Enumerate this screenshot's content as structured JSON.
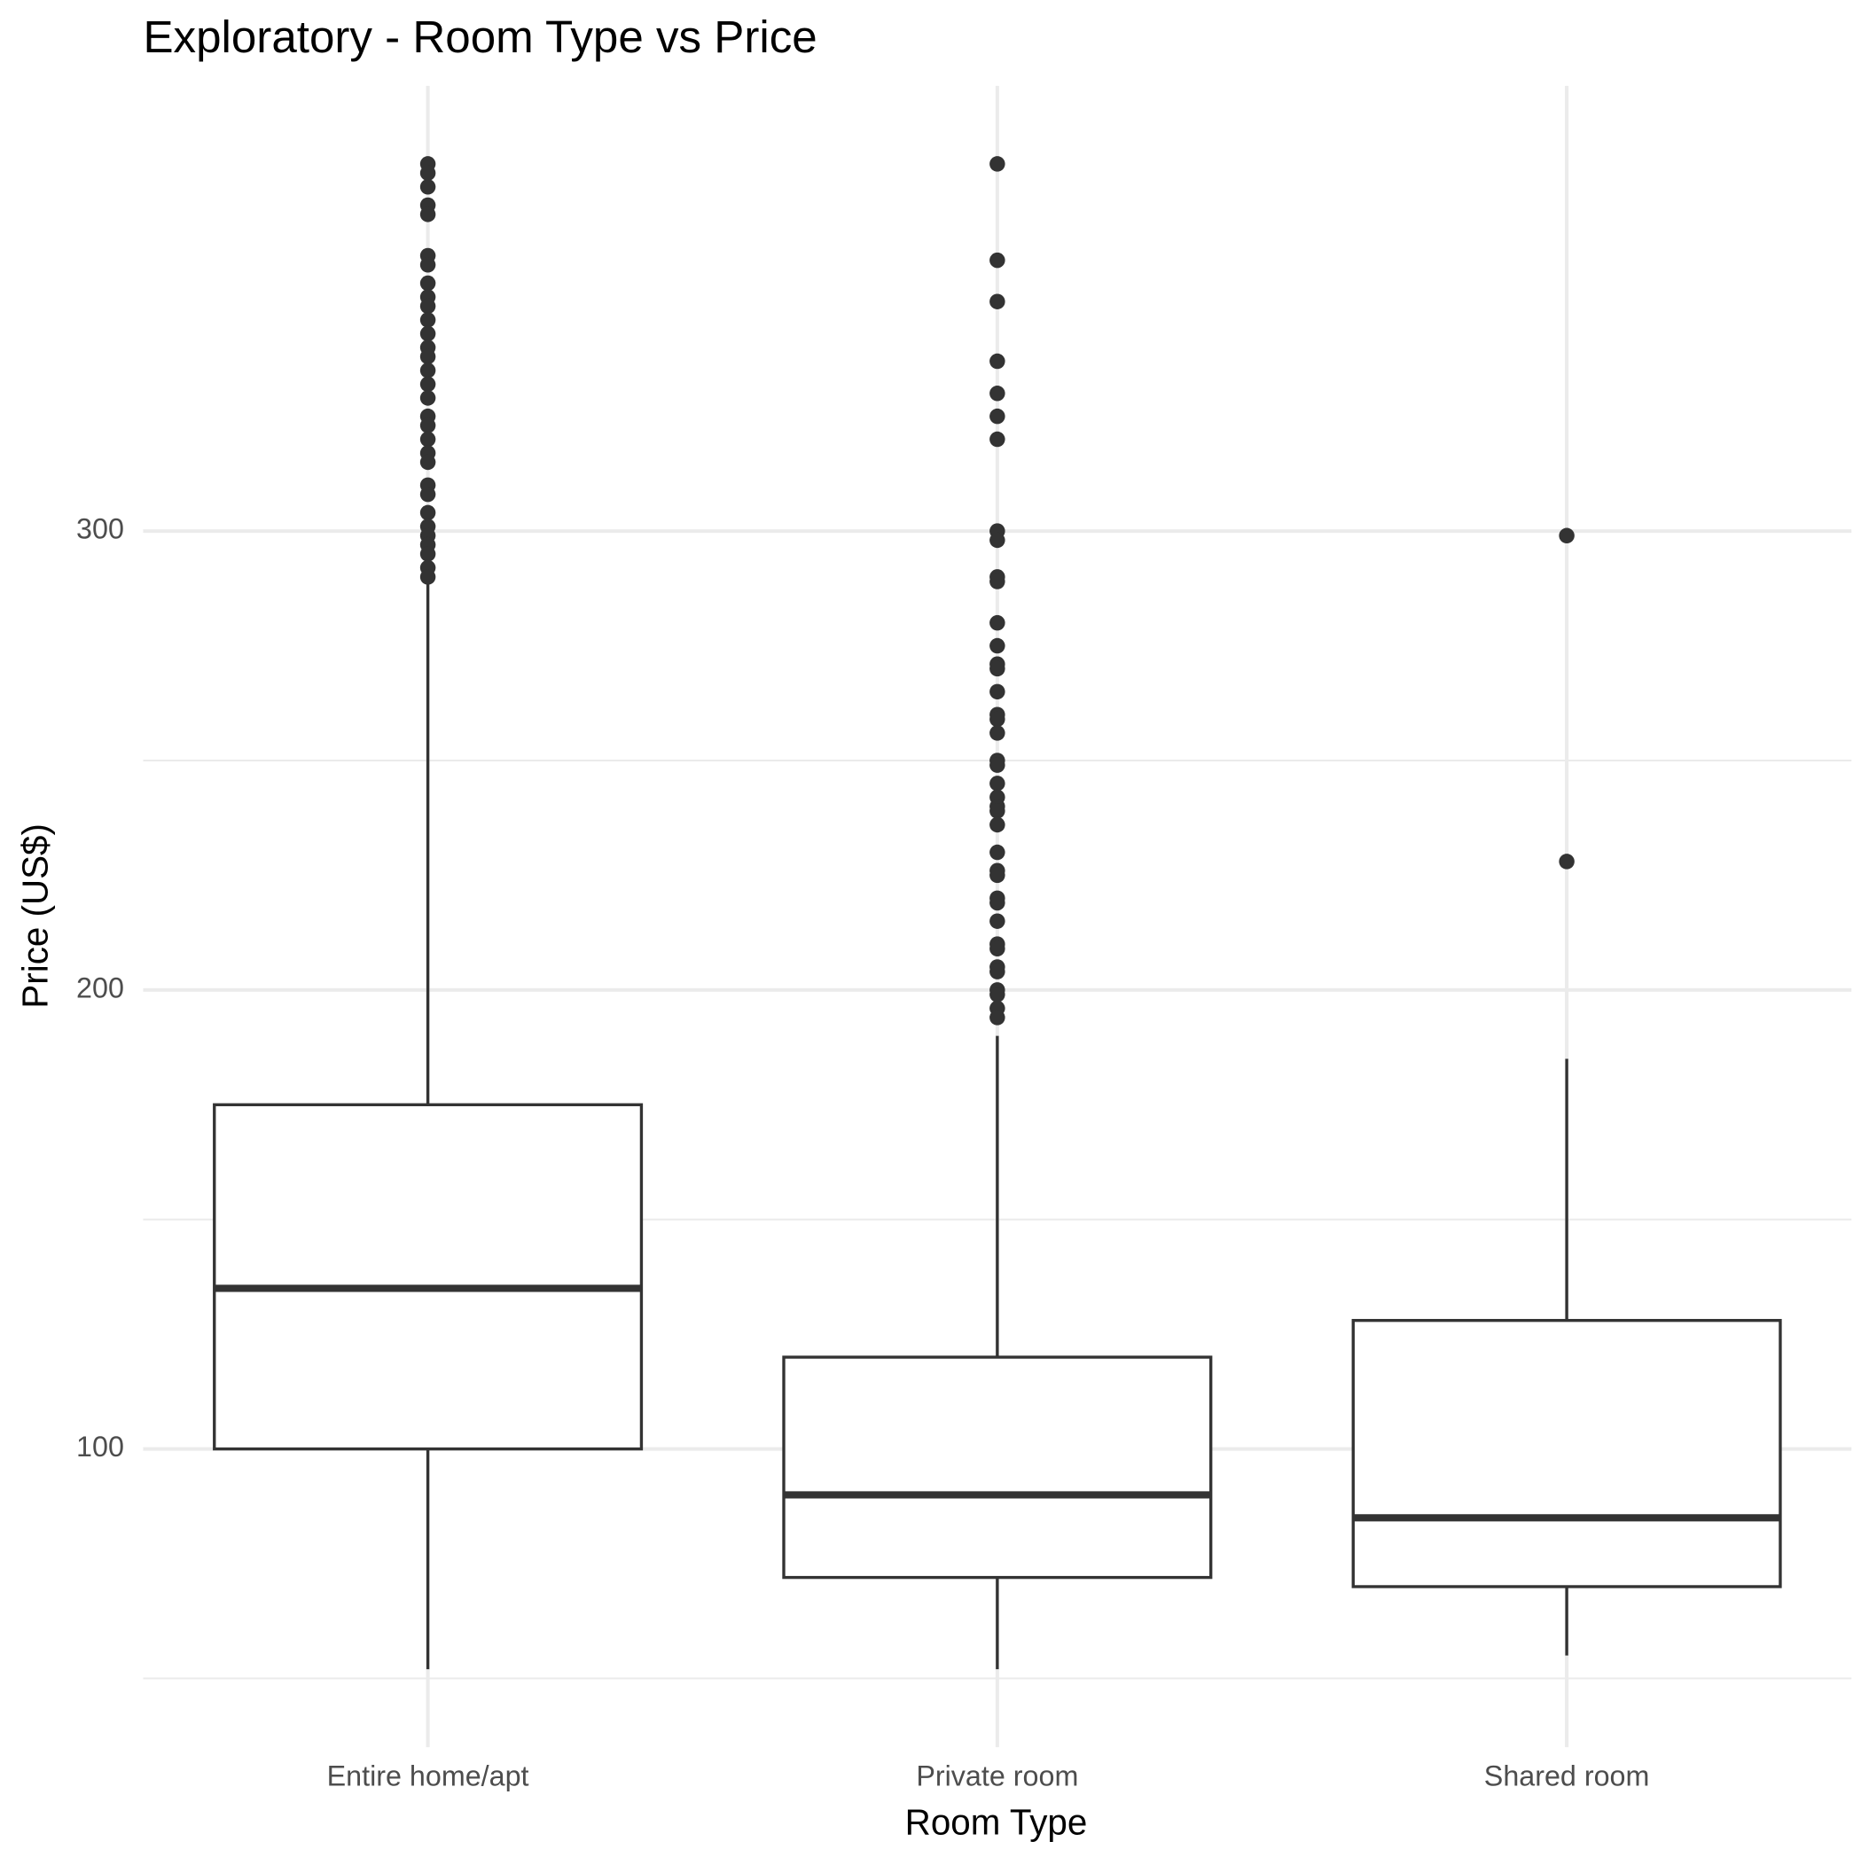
{
  "chart_data": {
    "type": "box",
    "title": "Exploratory - Room Type vs Price",
    "x_label": "Room Type",
    "y_label": "Price (US$)",
    "categories": [
      "Entire home/apt",
      "Private room",
      "Shared room"
    ],
    "color": "#333333",
    "boxes": [
      {
        "low": 52,
        "q1": 100,
        "median": 135,
        "q3": 175,
        "high": 289,
        "outliers": [
          380,
          378,
          375,
          371,
          369,
          360,
          358,
          354,
          351,
          349,
          346,
          343,
          340,
          338,
          335,
          332,
          329,
          325,
          323,
          320,
          317,
          315,
          310,
          308,
          304,
          301,
          299,
          297,
          295,
          292,
          290
        ]
      },
      {
        "low": 52,
        "q1": 72,
        "median": 90,
        "q3": 120,
        "high": 190,
        "outliers": [
          380,
          359,
          350,
          337,
          330,
          325,
          320,
          300,
          298,
          290,
          289,
          280,
          275,
          271,
          270,
          265,
          260,
          259,
          256,
          250,
          249,
          245,
          242,
          240,
          239,
          236,
          230,
          226,
          225,
          220,
          219,
          215,
          210,
          209,
          205,
          204,
          200,
          199,
          196,
          194
        ]
      },
      {
        "low": 55,
        "q1": 70,
        "median": 85,
        "q3": 128,
        "high": 185,
        "outliers": [
          299,
          228
        ]
      }
    ],
    "ylim": [
      35,
      397
    ],
    "yticks": [
      100,
      200,
      300
    ],
    "yminor": [
      50,
      150,
      250
    ],
    "grid": true
  }
}
